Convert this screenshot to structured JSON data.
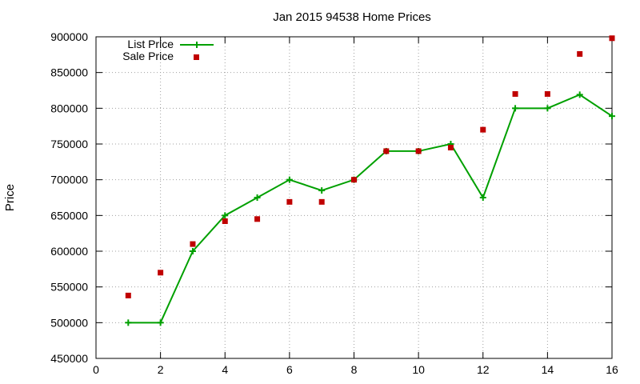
{
  "chart_data": {
    "type": "line",
    "title": "Jan 2015 94538 Home Prices",
    "xlabel": "",
    "ylabel": "Price",
    "xlim": [
      0,
      16
    ],
    "ylim": [
      450000,
      900000
    ],
    "x_ticks": [
      "0",
      "2",
      "4",
      "6",
      "8",
      "10",
      "12",
      "14",
      "16"
    ],
    "y_ticks": [
      "450000",
      "500000",
      "550000",
      "600000",
      "650000",
      "700000",
      "750000",
      "800000",
      "850000",
      "900000"
    ],
    "grid": true,
    "legend_position": "top-left",
    "series": [
      {
        "name": "List Price",
        "style": "line+cross",
        "color": "#00a000",
        "x": [
          1,
          2,
          3,
          4,
          5,
          6,
          7,
          8,
          9,
          10,
          11,
          12,
          13,
          14,
          15,
          16
        ],
        "values": [
          500000,
          500000,
          600000,
          650000,
          675000,
          700000,
          685000,
          700000,
          740000,
          740000,
          750000,
          675000,
          800000,
          800000,
          819000,
          789000
        ]
      },
      {
        "name": "Sale Price",
        "style": "square-points",
        "color": "#c00000",
        "x": [
          1,
          2,
          3,
          4,
          5,
          6,
          7,
          8,
          9,
          10,
          11,
          12,
          13,
          14,
          15,
          16
        ],
        "values": [
          538000,
          570000,
          610000,
          642000,
          645000,
          669000,
          669000,
          700000,
          740000,
          740000,
          745000,
          770000,
          820000,
          820000,
          876000,
          898000
        ]
      }
    ]
  }
}
